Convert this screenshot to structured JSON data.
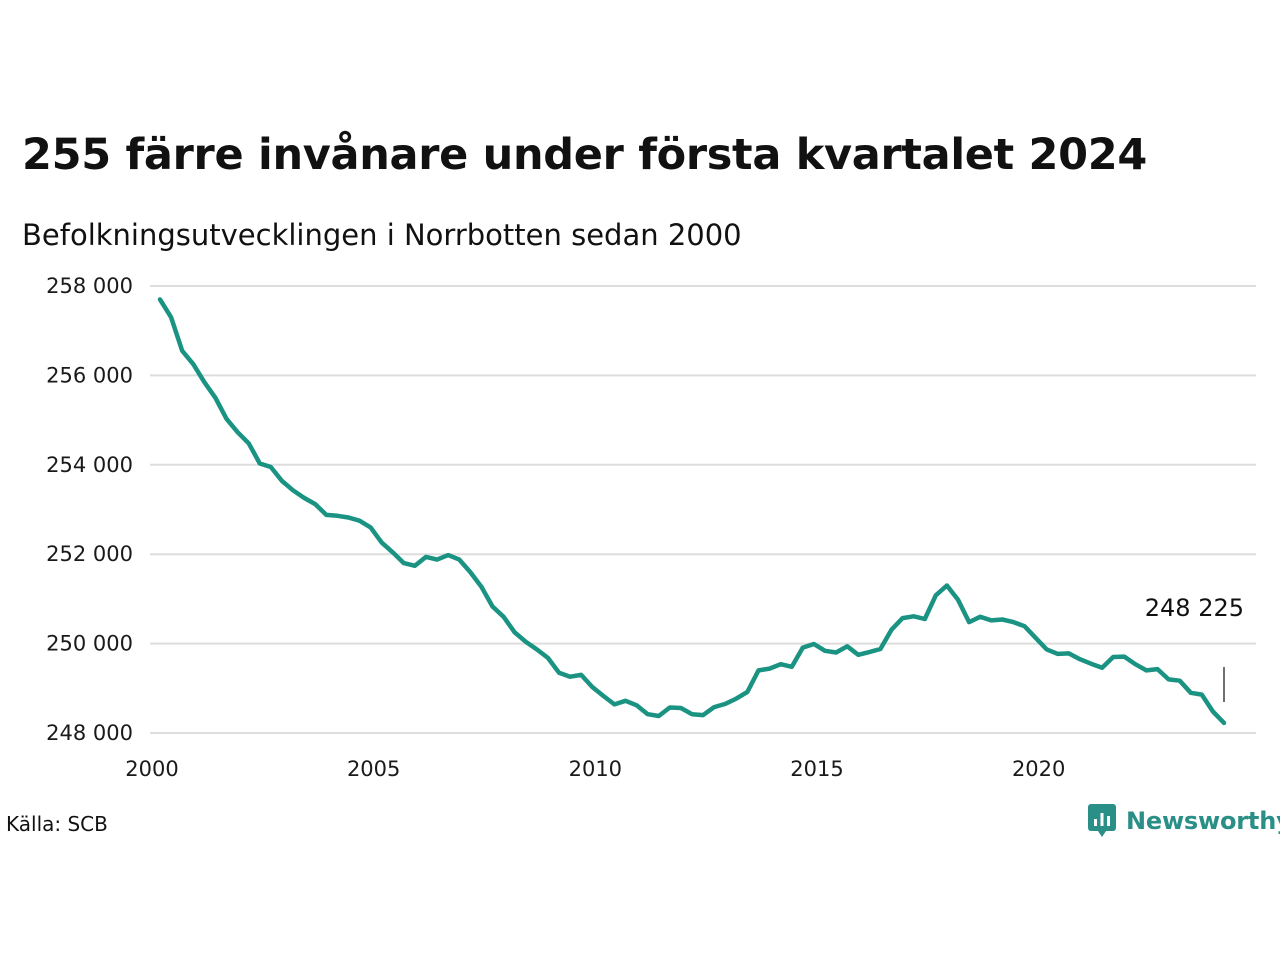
{
  "title": "255 färre invånare under första kvartalet 2024",
  "subtitle": "Befolkningsutvecklingen i Norrbotten sedan 2000",
  "source": "Källa: SCB",
  "logo_text": "Newsworthy",
  "colors": {
    "line": "#1a9383",
    "grid": "#dddddd",
    "text": "#111111",
    "brand": "#2a8f86"
  },
  "chart_data": {
    "type": "line",
    "title": "255 färre invånare under första kvartalet 2024",
    "subtitle": "Befolkningsutvecklingen i Norrbotten sedan 2000",
    "xlabel": "",
    "ylabel": "",
    "xlim": [
      2000,
      2024.5
    ],
    "ylim": [
      248000,
      258000
    ],
    "grid": true,
    "x_ticks": [
      2000,
      2005,
      2010,
      2015,
      2020
    ],
    "x_tick_labels": [
      "2000",
      "2005",
      "2010",
      "2015",
      "2020"
    ],
    "y_ticks": [
      248000,
      250000,
      252000,
      254000,
      256000,
      258000
    ],
    "y_tick_labels": [
      "248 000",
      "250 000",
      "252 000",
      "254 000",
      "256 000",
      "258 000"
    ],
    "annotation": {
      "x": 2024.0,
      "y": 248225,
      "label": "248 225"
    },
    "series": [
      {
        "x": [
          2000.0,
          2000.25,
          2000.5,
          2000.75,
          2001.0,
          2001.25,
          2001.5,
          2001.75,
          2002.0,
          2002.25,
          2002.5,
          2002.75,
          2003.0,
          2003.25,
          2003.5,
          2003.75,
          2004.0,
          2004.25,
          2004.5,
          2004.75,
          2005.0,
          2005.25,
          2005.5,
          2005.75,
          2006.0,
          2006.25,
          2006.5,
          2006.75,
          2007.0,
          2007.25,
          2007.5,
          2007.75,
          2008.0,
          2008.25,
          2008.5,
          2008.75,
          2009.0,
          2009.25,
          2009.5,
          2009.75,
          2010.0,
          2010.25,
          2010.5,
          2010.75,
          2011.0,
          2011.25,
          2011.5,
          2011.75,
          2012.0,
          2012.25,
          2012.5,
          2012.75,
          2013.0,
          2013.25,
          2013.5,
          2013.75,
          2014.0,
          2014.25,
          2014.5,
          2014.75,
          2015.0,
          2015.25,
          2015.5,
          2015.75,
          2016.0,
          2016.25,
          2016.5,
          2016.75,
          2017.0,
          2017.25,
          2017.5,
          2017.75,
          2018.0,
          2018.25,
          2018.5,
          2018.75,
          2019.0,
          2019.25,
          2019.5,
          2019.75,
          2020.0,
          2020.25,
          2020.5,
          2020.75,
          2021.0,
          2021.25,
          2021.5,
          2021.75,
          2022.0,
          2022.25,
          2022.5,
          2022.75,
          2023.0,
          2023.25,
          2023.5,
          2023.75,
          2024.0
        ],
        "y": [
          257700,
          257300,
          256550,
          256250,
          255850,
          255500,
          255030,
          254730,
          254480,
          254030,
          253950,
          253640,
          253430,
          253260,
          253120,
          252880,
          252860,
          252820,
          252750,
          252600,
          252260,
          252040,
          251800,
          251740,
          251940,
          251880,
          251980,
          251880,
          251600,
          251270,
          250830,
          250600,
          250250,
          250040,
          249870,
          249680,
          249350,
          249260,
          249300,
          249030,
          248830,
          248640,
          248720,
          248620,
          248420,
          248380,
          248570,
          248560,
          248420,
          248400,
          248580,
          248650,
          248770,
          248920,
          249400,
          249440,
          249540,
          249480,
          249910,
          249990,
          249840,
          249800,
          249940,
          249750,
          249810,
          249880,
          250310,
          250570,
          250610,
          250550,
          251080,
          251300,
          250980,
          250480,
          250600,
          250520,
          250540,
          250480,
          250390,
          250130,
          249870,
          249770,
          249780,
          249650,
          249550,
          249460,
          249700,
          249710,
          249540,
          249400,
          249430,
          249200,
          249170,
          248900,
          248860,
          248480,
          248225
        ]
      }
    ]
  }
}
